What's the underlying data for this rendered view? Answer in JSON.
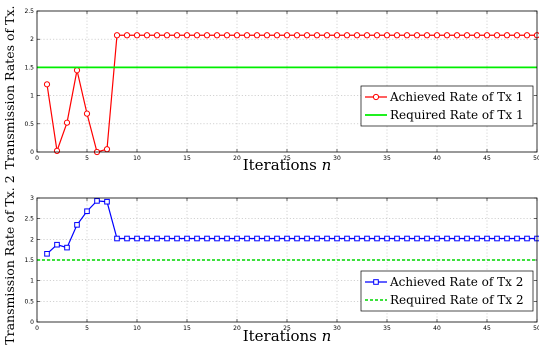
{
  "chart_data": [
    {
      "type": "line",
      "ylabel": "Transmission Rates of Tx. 1",
      "xlabel": "Iterations ",
      "xlabel_italic": "n",
      "xlim": [
        0,
        50
      ],
      "ylim": [
        0,
        2.5
      ],
      "xticks": [
        0,
        5,
        10,
        15,
        20,
        25,
        30,
        35,
        40,
        45,
        50
      ],
      "yticks": [
        0,
        0.5,
        1,
        1.5,
        2,
        2.5
      ],
      "grid": true,
      "legend_position": "right-middle",
      "series": [
        {
          "name": "Achieved Rate of Tx 1",
          "color": "#ff0000",
          "marker": "circle",
          "x": [
            1,
            2,
            3,
            4,
            5,
            6,
            7,
            8,
            9,
            10,
            11,
            12,
            13,
            14,
            15,
            16,
            17,
            18,
            19,
            20,
            21,
            22,
            23,
            24,
            25,
            26,
            27,
            28,
            29,
            30,
            31,
            32,
            33,
            34,
            35,
            36,
            37,
            38,
            39,
            40,
            41,
            42,
            43,
            44,
            45,
            46,
            47,
            48,
            49,
            50
          ],
          "y": [
            1.2,
            0.02,
            0.52,
            1.45,
            0.68,
            0,
            0.05,
            2.07,
            2.07,
            2.07,
            2.07,
            2.07,
            2.07,
            2.07,
            2.07,
            2.07,
            2.07,
            2.07,
            2.07,
            2.07,
            2.07,
            2.07,
            2.07,
            2.07,
            2.07,
            2.07,
            2.07,
            2.07,
            2.07,
            2.07,
            2.07,
            2.07,
            2.07,
            2.07,
            2.07,
            2.07,
            2.07,
            2.07,
            2.07,
            2.07,
            2.07,
            2.07,
            2.07,
            2.07,
            2.07,
            2.07,
            2.07,
            2.07,
            2.07,
            2.07
          ]
        },
        {
          "name": "Required Rate of Tx 1",
          "color": "#00ee00",
          "style": "solid",
          "x": [
            0,
            50
          ],
          "y": [
            1.5,
            1.5
          ]
        }
      ]
    },
    {
      "type": "line",
      "ylabel": "Transmission Rate of Tx. 2",
      "xlabel": "Iterations ",
      "xlabel_italic": "n",
      "xlim": [
        0,
        50
      ],
      "ylim": [
        0,
        3
      ],
      "xticks": [
        0,
        5,
        10,
        15,
        20,
        25,
        30,
        35,
        40,
        45,
        50
      ],
      "yticks": [
        0,
        0.5,
        1,
        1.5,
        2,
        2.5,
        3
      ],
      "grid": true,
      "legend_position": "bottom-right",
      "series": [
        {
          "name": "Achieved Rate of Tx 2",
          "color": "#0000ff",
          "marker": "square",
          "x": [
            1,
            2,
            3,
            4,
            5,
            6,
            7,
            8,
            9,
            10,
            11,
            12,
            13,
            14,
            15,
            16,
            17,
            18,
            19,
            20,
            21,
            22,
            23,
            24,
            25,
            26,
            27,
            28,
            29,
            30,
            31,
            32,
            33,
            34,
            35,
            36,
            37,
            38,
            39,
            40,
            41,
            42,
            43,
            44,
            45,
            46,
            47,
            48,
            49,
            50
          ],
          "y": [
            1.65,
            1.87,
            1.8,
            2.35,
            2.68,
            2.93,
            2.91,
            2.02,
            2.02,
            2.02,
            2.02,
            2.02,
            2.02,
            2.02,
            2.02,
            2.02,
            2.02,
            2.02,
            2.02,
            2.02,
            2.02,
            2.02,
            2.02,
            2.02,
            2.02,
            2.02,
            2.02,
            2.02,
            2.02,
            2.02,
            2.02,
            2.02,
            2.02,
            2.02,
            2.02,
            2.02,
            2.02,
            2.02,
            2.02,
            2.02,
            2.02,
            2.02,
            2.02,
            2.02,
            2.02,
            2.02,
            2.02,
            2.02,
            2.02,
            2.02
          ]
        },
        {
          "name": "Required Rate of Tx 2",
          "color": "#22dd22",
          "style": "dashed",
          "x": [
            0,
            50
          ],
          "y": [
            1.5,
            1.5
          ]
        }
      ]
    }
  ]
}
